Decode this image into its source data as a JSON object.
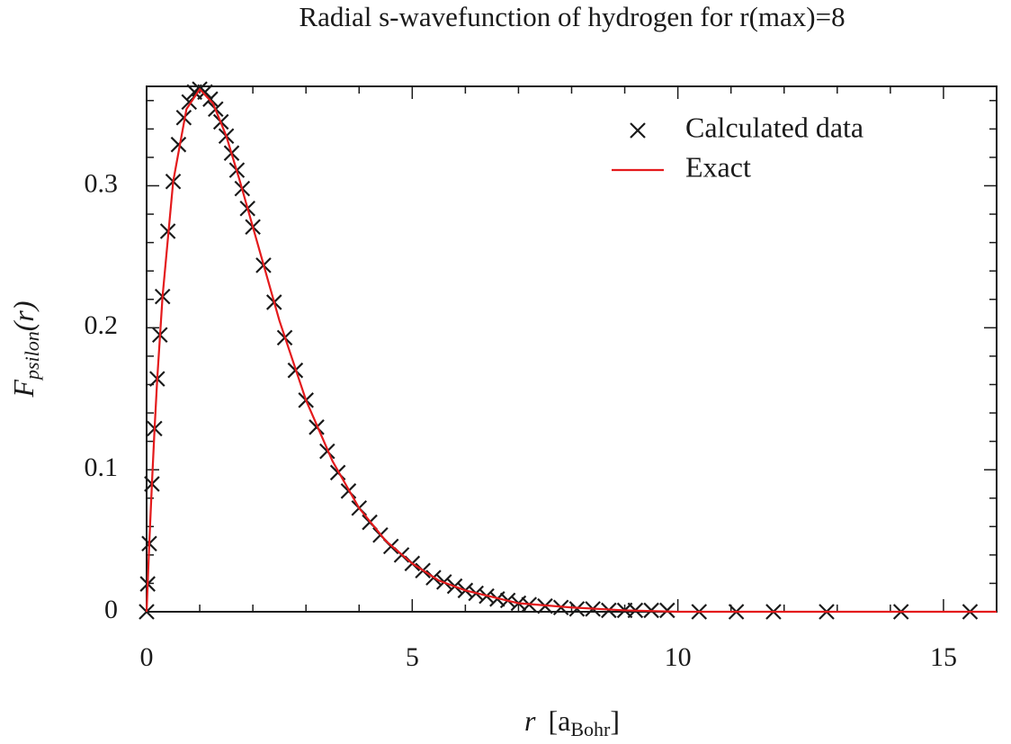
{
  "chart_data": {
    "type": "scatter",
    "title": "Radial s-wavefunction of hydrogen for r(max)=8",
    "xlabel": {
      "main": "r",
      "bracket": "[a",
      "sub": "Bohr",
      "end": "]"
    },
    "ylabel": {
      "main": "F",
      "sub": "psilon",
      "end": "(r)"
    },
    "xlim": [
      0,
      16
    ],
    "ylim": [
      0,
      0.37
    ],
    "xticks": [
      0,
      5,
      10,
      15
    ],
    "yticks": [
      0,
      0.1,
      0.2,
      0.3
    ],
    "xminorticks": [
      1,
      2,
      3,
      4,
      6,
      7,
      8,
      9,
      11,
      12,
      13,
      14,
      16
    ],
    "yminorticks": [
      0.02,
      0.04,
      0.06,
      0.08,
      0.12,
      0.14,
      0.16,
      0.18,
      0.22,
      0.24,
      0.26,
      0.28,
      0.32,
      0.34,
      0.36
    ],
    "grid": false,
    "legend": "upper right",
    "series": [
      {
        "name": "Calculated data",
        "type": "scatter",
        "color": "#1a1a1a",
        "x": [
          0,
          0.02,
          0.05,
          0.1,
          0.15,
          0.2,
          0.25,
          0.3,
          0.4,
          0.5,
          0.6,
          0.7,
          0.8,
          0.9,
          1,
          1.1,
          1.2,
          1.3,
          1.4,
          1.5,
          1.6,
          1.7,
          1.8,
          1.9,
          2,
          2.2,
          2.4,
          2.6,
          2.8,
          3,
          3.2,
          3.4,
          3.6,
          3.8,
          4,
          4.2,
          4.4,
          4.6,
          4.8,
          5,
          5.2,
          5.4,
          5.6,
          5.8,
          6,
          6.2,
          6.4,
          6.6,
          6.8,
          7,
          7.2,
          7.5,
          7.8,
          8.1,
          8.4,
          8.7,
          9.0,
          9.2,
          9.5,
          9.8,
          10.4,
          11.1,
          11.8,
          12.8,
          14.2,
          15.5
        ],
        "values": [
          0,
          0.0196,
          0.048,
          0.09,
          0.129,
          0.164,
          0.195,
          0.222,
          0.268,
          0.303,
          0.329,
          0.348,
          0.359,
          0.366,
          0.368,
          0.366,
          0.361,
          0.354,
          0.345,
          0.335,
          0.323,
          0.311,
          0.298,
          0.284,
          0.271,
          0.244,
          0.218,
          0.193,
          0.17,
          0.149,
          0.13,
          0.113,
          0.098,
          0.085,
          0.073,
          0.063,
          0.054,
          0.046,
          0.04,
          0.034,
          0.029,
          0.024,
          0.021,
          0.018,
          0.015,
          0.013,
          0.011,
          0.009,
          0.008,
          0.006,
          0.005,
          0.004,
          0.003,
          0.002,
          0.002,
          0.001,
          0.001,
          0.001,
          0.001,
          0.001,
          0,
          0,
          0,
          0,
          0,
          0
        ]
      },
      {
        "name": "Exact",
        "type": "line",
        "color": "#e41a1c",
        "x": [
          0,
          0.05,
          0.1,
          0.15,
          0.2,
          0.3,
          0.5,
          0.75,
          1,
          1.25,
          1.5,
          1.75,
          2,
          2.5,
          3,
          3.5,
          4,
          4.5,
          5,
          5.5,
          6,
          7,
          8,
          9,
          10,
          12,
          14,
          16
        ],
        "values": [
          0,
          0.048,
          0.09,
          0.129,
          0.164,
          0.222,
          0.303,
          0.354,
          0.368,
          0.358,
          0.335,
          0.304,
          0.271,
          0.205,
          0.149,
          0.106,
          0.073,
          0.05,
          0.034,
          0.022,
          0.015,
          0.006,
          0.003,
          0.001,
          0,
          0,
          0,
          0
        ]
      }
    ]
  }
}
